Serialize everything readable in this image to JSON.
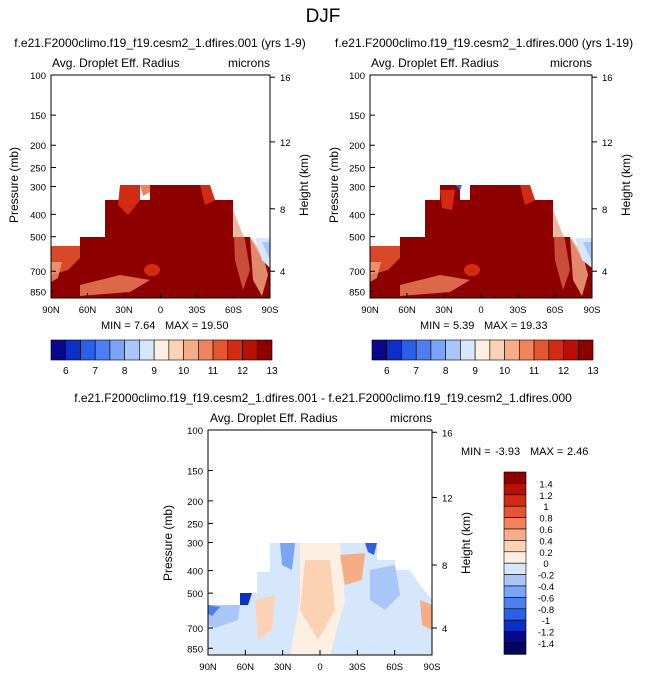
{
  "page_title": "DJF",
  "chart_data": [
    {
      "type": "heatmap",
      "run_label": "f.e21.F2000climo.f19_f19.cesm2_1.dfires.001 (yrs 1-9)",
      "title": "Avg. Droplet Eff. Radius",
      "units": "microns",
      "ylabel": "Pressure (mb)",
      "ylabel_right": "Height (km)",
      "x_ticks": [
        "90N",
        "60N",
        "30N",
        "0",
        "30S",
        "60S",
        "90S"
      ],
      "y_ticks": [
        "100",
        "150",
        "200",
        "250",
        "300",
        "400",
        "500",
        "700",
        "850"
      ],
      "height_ticks": [
        "16",
        "12",
        "8",
        "4"
      ],
      "min_label": "MIN = ",
      "min_value": "7.64",
      "max_label": "MAX = ",
      "max_value": "19.50"
    },
    {
      "type": "heatmap",
      "run_label": "f.e21.F2000climo.f19_f19.cesm2_1.dfires.000 (yrs 1-19)",
      "title": "Avg. Droplet Eff. Radius",
      "units": "microns",
      "ylabel": "Pressure (mb)",
      "ylabel_right": "Height (km)",
      "x_ticks": [
        "90N",
        "60N",
        "30N",
        "0",
        "30S",
        "60S",
        "90S"
      ],
      "y_ticks": [
        "100",
        "150",
        "200",
        "250",
        "300",
        "400",
        "500",
        "700",
        "850"
      ],
      "height_ticks": [
        "16",
        "12",
        "8",
        "4"
      ],
      "min_label": "MIN = ",
      "min_value": "5.39",
      "max_label": "MAX = ",
      "max_value": "19.33"
    },
    {
      "type": "heatmap",
      "run_label": "f.e21.F2000climo.f19_f19.cesm2_1.dfires.001 - f.e21.F2000climo.f19_f19.cesm2_1.dfires.000",
      "title": "Avg. Droplet Eff. Radius",
      "units": "microns",
      "ylabel": "Pressure (mb)",
      "ylabel_right": "Height (km)",
      "x_ticks": [
        "90N",
        "60N",
        "30N",
        "0",
        "30S",
        "60S",
        "90S"
      ],
      "y_ticks": [
        "100",
        "150",
        "200",
        "250",
        "300",
        "400",
        "500",
        "700",
        "850"
      ],
      "height_ticks": [
        "16",
        "12",
        "8",
        "4"
      ],
      "min_label": "MIN = ",
      "min_value": "-3.93",
      "max_label": "MAX = ",
      "max_value": "2.46"
    }
  ],
  "colorbar_top": {
    "labels": [
      "6",
      "7",
      "8",
      "9",
      "10",
      "11",
      "12",
      "13"
    ],
    "colors": [
      "#08088a",
      "#0c2fc8",
      "#2a5fe8",
      "#4d7ff0",
      "#7aa4f5",
      "#a8c6f8",
      "#d6e6fb",
      "#fdf0e3",
      "#fbd3b4",
      "#f6ad86",
      "#f0825c",
      "#e6552f",
      "#d22b12",
      "#b80f06",
      "#8e0000"
    ]
  },
  "colorbar_diff": {
    "labels": [
      "1.4",
      "1.2",
      "1",
      "0.8",
      "0.6",
      "0.4",
      "0.2",
      "0",
      "-0.2",
      "-0.4",
      "-0.6",
      "-0.8",
      "-1",
      "-1.2",
      "-1.4"
    ],
    "colors": [
      "#8e0000",
      "#b80f06",
      "#d22b12",
      "#e6552f",
      "#f0825c",
      "#f6ad86",
      "#fbd3b4",
      "#fdf0e3",
      "#d6e6fb",
      "#a8c6f8",
      "#7aa4f5",
      "#4d7ff0",
      "#2a5fe8",
      "#0c2fc8",
      "#08088a",
      "#050560"
    ]
  }
}
